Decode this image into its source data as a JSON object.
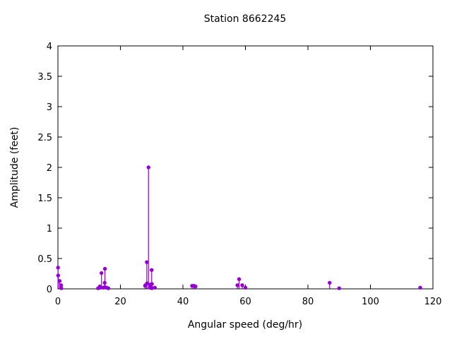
{
  "figure": {
    "title": "Station 8662245",
    "xlabel": "Angular speed (deg/hr)",
    "ylabel": "Amplitude (feet)"
  },
  "colors": {
    "series": "#9400d3",
    "axis": "#000000",
    "text": "#000000",
    "background": "#ffffff"
  },
  "chart_data": {
    "type": "scatter",
    "style": "impulses-with-filled-points",
    "title": "Station 8662245",
    "xlabel": "Angular speed (deg/hr)",
    "ylabel": "Amplitude (feet)",
    "xlim": [
      0,
      120
    ],
    "ylim": [
      0,
      4
    ],
    "x_ticks": [
      0,
      20,
      40,
      60,
      80,
      100,
      120
    ],
    "x_tick_labels": [
      "0",
      "20",
      "40",
      "60",
      "80",
      "100",
      "120"
    ],
    "y_ticks": [
      0,
      0.5,
      1,
      1.5,
      2,
      2.5,
      3,
      3.5,
      4
    ],
    "y_tick_labels": [
      "0",
      "0.5",
      "1",
      "1.5",
      "2",
      "2.5",
      "3",
      "3.5",
      "4"
    ],
    "grid": false,
    "legend": false,
    "points": [
      [
        0.04,
        0.35
      ],
      [
        0.08,
        0.22
      ],
      [
        0.54,
        0.13
      ],
      [
        1.02,
        0.06
      ],
      [
        1.1,
        0.01
      ],
      [
        12.85,
        0.01
      ],
      [
        13.4,
        0.04
      ],
      [
        13.47,
        0.02
      ],
      [
        13.94,
        0.26
      ],
      [
        14.5,
        0.02
      ],
      [
        14.96,
        0.1
      ],
      [
        15.0,
        0.03
      ],
      [
        15.04,
        0.33
      ],
      [
        15.59,
        0.02
      ],
      [
        16.14,
        0.01
      ],
      [
        27.9,
        0.05
      ],
      [
        27.97,
        0.06
      ],
      [
        28.44,
        0.44
      ],
      [
        28.51,
        0.09
      ],
      [
        28.98,
        2.0
      ],
      [
        29.46,
        0.02
      ],
      [
        29.53,
        0.07
      ],
      [
        29.96,
        0.02
      ],
      [
        30.0,
        0.31
      ],
      [
        30.04,
        0.01
      ],
      [
        30.08,
        0.08
      ],
      [
        31.02,
        0.02
      ],
      [
        42.93,
        0.05
      ],
      [
        43.48,
        0.05
      ],
      [
        44.03,
        0.04
      ],
      [
        57.42,
        0.06
      ],
      [
        57.97,
        0.16
      ],
      [
        58.98,
        0.06
      ],
      [
        60.0,
        0.02
      ],
      [
        86.95,
        0.1
      ],
      [
        90.0,
        0.01
      ],
      [
        115.94,
        0.02
      ]
    ]
  }
}
